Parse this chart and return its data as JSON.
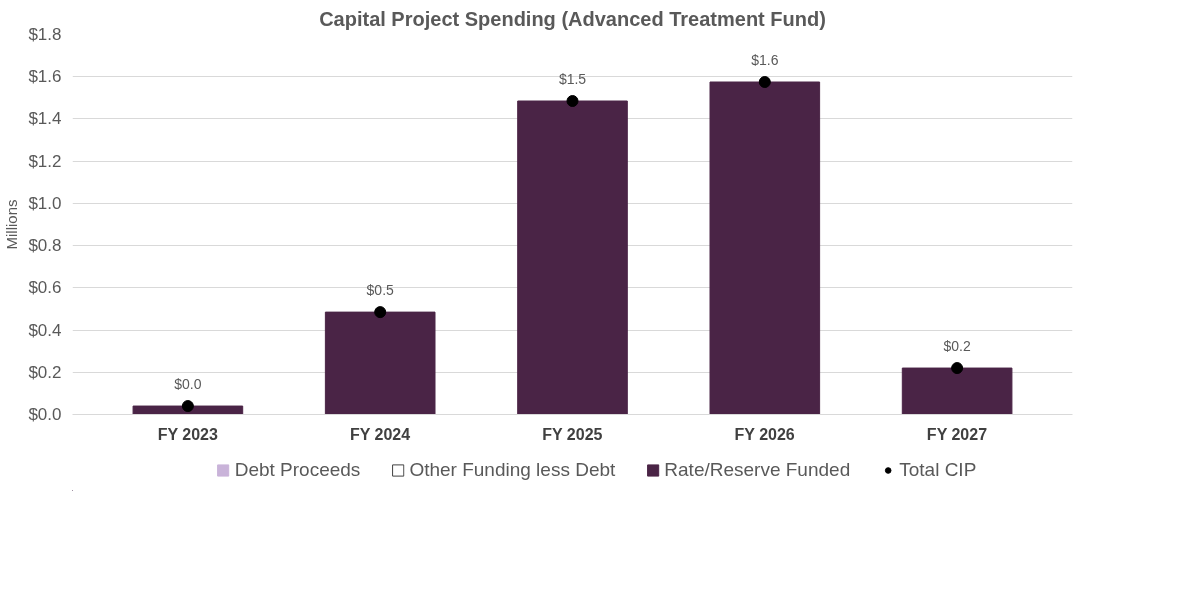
{
  "chart_data": {
    "type": "bar",
    "title": "Capital Project Spending (Advanced Treatment Fund)",
    "ylabel": "Millions",
    "categories": [
      "FY 2023",
      "FY 2024",
      "FY 2025",
      "FY 2026",
      "FY 2027"
    ],
    "stacked": true,
    "series": [
      {
        "name": "Debt Proceeds",
        "color": "#c9b3d9",
        "values": [
          null,
          null,
          null,
          null,
          null
        ]
      },
      {
        "name": "Other Funding less Debt",
        "color": "#ffffff",
        "values": [
          null,
          null,
          null,
          null,
          null
        ]
      },
      {
        "name": "Rate/Reserve Funded",
        "color": "#4a2446",
        "values": [
          0.04,
          0.485,
          1.485,
          1.575,
          0.22
        ]
      },
      {
        "name": "Total CIP",
        "type": "scatter",
        "color": "#000000",
        "values": [
          0.04,
          0.485,
          1.485,
          1.575,
          0.22
        ],
        "value_labels": [
          "$0.0",
          "$0.5",
          "$1.5",
          "$1.6",
          "$0.2"
        ]
      }
    ],
    "ylim": [
      0,
      1.8
    ],
    "yticks": [
      {
        "value": 0,
        "label": "$0.0"
      },
      {
        "value": 0.2,
        "label": "$0.2"
      },
      {
        "value": 0.4,
        "label": "$0.4"
      },
      {
        "value": 0.6,
        "label": "$0.6"
      },
      {
        "value": 0.8,
        "label": "$0.8"
      },
      {
        "value": 1.0,
        "label": "$1.0"
      },
      {
        "value": 1.2,
        "label": "$1.2"
      },
      {
        "value": 1.4,
        "label": "$1.4"
      },
      {
        "value": 1.6,
        "label": "$1.6"
      },
      {
        "value": 1.8,
        "label": "$1.8"
      }
    ],
    "grid": "y",
    "legend": "bottom",
    "marker": "circle"
  }
}
